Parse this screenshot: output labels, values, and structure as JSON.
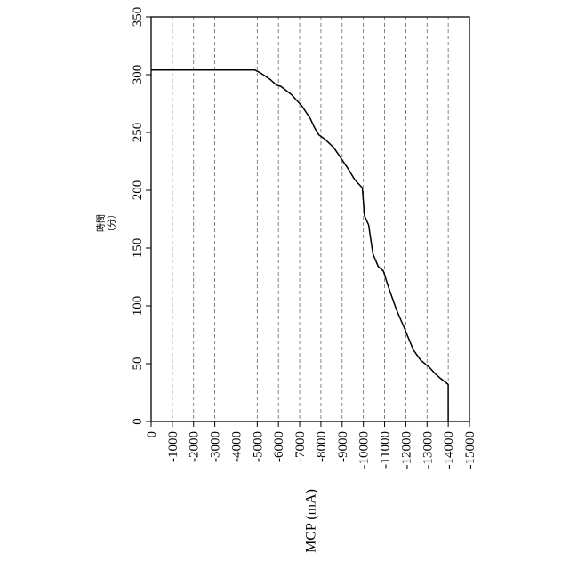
{
  "chart_data": {
    "type": "line",
    "title": "",
    "xlabel": "MCP (mA)",
    "ylabel_line1": "時間",
    "ylabel_line2": "（分）",
    "xlim": [
      0,
      -15000
    ],
    "ylim": [
      0,
      350
    ],
    "x_ticks": [
      0,
      -1000,
      -2000,
      -3000,
      -4000,
      -5000,
      -6000,
      -7000,
      -8000,
      -9000,
      -10000,
      -11000,
      -12000,
      -13000,
      -14000,
      -15000
    ],
    "x_tick_labels": [
      "0",
      "-1000",
      "-2000",
      "-3000",
      "-4000",
      "-5000",
      "-6000",
      "-7000",
      "-8000",
      "-9000",
      "-10000",
      "-11000",
      "-12000",
      "-13000",
      "-14000",
      "-15000"
    ],
    "y_ticks": [
      0,
      50,
      100,
      150,
      200,
      250,
      300,
      350
    ],
    "y_tick_labels": [
      "0",
      "50",
      "100",
      "150",
      "200",
      "250",
      "300",
      "350"
    ],
    "grid": "vertical-dashed",
    "series": [
      {
        "x": [
          0,
          -4900,
          -5200,
          -5600,
          -5900,
          -6100,
          -6600,
          -7100,
          -7500,
          -7700,
          -7900,
          -8200,
          -8600,
          -8900,
          -9300,
          -9600,
          -9850,
          -9950,
          -10050,
          -10250,
          -10450,
          -10700,
          -10950,
          -11050,
          -11150,
          -11550,
          -11950,
          -12350,
          -12700,
          -13100,
          -13400,
          -13650,
          -14000,
          -14000
        ],
        "y": [
          304,
          304,
          301,
          296,
          291,
          290,
          283,
          273,
          262,
          254,
          248,
          244,
          237,
          229,
          218,
          209,
          204,
          202,
          178,
          170,
          145,
          134,
          130,
          124,
          118,
          97,
          80,
          62,
          53,
          47,
          41,
          37,
          32,
          0
        ]
      }
    ]
  }
}
